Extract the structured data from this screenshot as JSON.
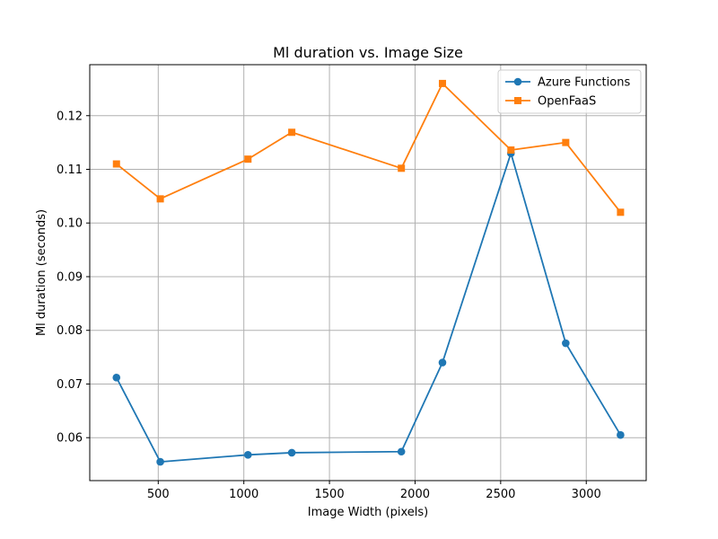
{
  "chart_data": {
    "type": "line",
    "title": "Ml duration vs. Image Size",
    "xlabel": "Image Width (pixels)",
    "ylabel": "Ml duration (seconds)",
    "xlim": [
      100,
      3350
    ],
    "ylim": [
      0.052,
      0.1295
    ],
    "xticks": [
      500,
      1000,
      1500,
      2000,
      2500,
      3000
    ],
    "xtick_labels": [
      "500",
      "1000",
      "1500",
      "2000",
      "2500",
      "3000"
    ],
    "yticks": [
      0.06,
      0.07,
      0.08,
      0.09,
      0.1,
      0.11,
      0.12
    ],
    "ytick_labels": [
      "0.06",
      "0.07",
      "0.08",
      "0.09",
      "0.10",
      "0.11",
      "0.12"
    ],
    "grid": true,
    "legend_position": "top-right",
    "x": [
      256,
      512,
      1024,
      1280,
      1920,
      2160,
      2560,
      2880,
      3200
    ],
    "series": [
      {
        "name": "Azure Functions",
        "color": "#1f77b4",
        "marker": "circle",
        "values": [
          0.0712,
          0.0555,
          0.0568,
          0.0572,
          0.0574,
          0.074,
          0.113,
          0.0776,
          0.0605
        ]
      },
      {
        "name": "OpenFaaS",
        "color": "#ff7f0e",
        "marker": "square",
        "values": [
          0.111,
          0.1045,
          0.1119,
          0.1169,
          0.1102,
          0.126,
          0.1136,
          0.115,
          0.102
        ]
      }
    ]
  }
}
